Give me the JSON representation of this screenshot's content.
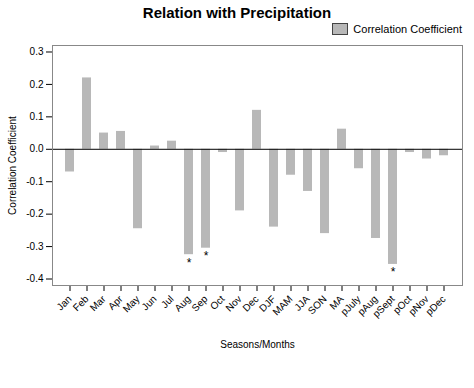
{
  "chart_data": {
    "type": "bar",
    "title": "Relation with Precipitation",
    "xlabel": "Seasons/Months",
    "ylabel": "Correlation Coefficient",
    "categories": [
      "Jan",
      "Feb",
      "Mar",
      "Apr",
      "May",
      "Jun",
      "Jul",
      "Aug",
      "Sep",
      "Oct",
      "Nov",
      "Dec",
      "DJF",
      "MAM",
      "JJA",
      "SON",
      "MA",
      "pJuly",
      "pAug",
      "pSept",
      "pOct",
      "pNov",
      "pDec"
    ],
    "series": [
      {
        "name": "Correlation Coefficient",
        "color": "#b8b8b8",
        "values": [
          -0.07,
          0.22,
          0.05,
          0.055,
          -0.245,
          0.01,
          0.025,
          -0.325,
          -0.305,
          -0.01,
          -0.19,
          0.12,
          -0.24,
          -0.08,
          -0.13,
          -0.26,
          0.062,
          -0.06,
          -0.275,
          -0.355,
          -0.01,
          -0.03,
          -0.02
        ]
      }
    ],
    "annotations": [
      {
        "x": "Aug",
        "text": "*"
      },
      {
        "x": "Sep",
        "text": "*"
      },
      {
        "x": "pSept",
        "text": "*"
      }
    ],
    "ylim": [
      -0.42,
      0.32
    ],
    "yticks": [
      -0.4,
      -0.3,
      -0.2,
      -0.1,
      {
        "value": 0,
        "label": "0.0"
      },
      0.1,
      0.2,
      0.3
    ],
    "grid": false,
    "legend": "upper right"
  }
}
